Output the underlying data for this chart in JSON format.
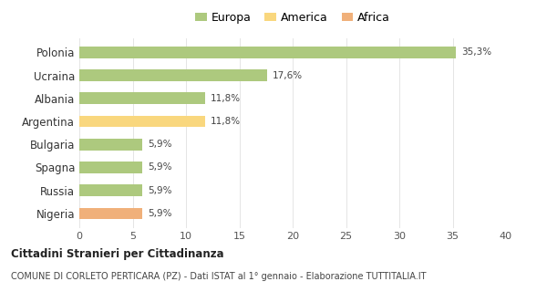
{
  "categories": [
    "Polonia",
    "Ucraina",
    "Albania",
    "Argentina",
    "Bulgaria",
    "Spagna",
    "Russia",
    "Nigeria"
  ],
  "values": [
    35.3,
    17.6,
    11.8,
    11.8,
    5.9,
    5.9,
    5.9,
    5.9
  ],
  "labels": [
    "35,3%",
    "17,6%",
    "11,8%",
    "11,8%",
    "5,9%",
    "5,9%",
    "5,9%",
    "5,9%"
  ],
  "colors": [
    "#adc97e",
    "#adc97e",
    "#adc97e",
    "#f9d77e",
    "#adc97e",
    "#adc97e",
    "#adc97e",
    "#f0b07a"
  ],
  "continent": [
    "Europa",
    "Europa",
    "Europa",
    "America",
    "Europa",
    "Europa",
    "Europa",
    "Africa"
  ],
  "legend_labels": [
    "Europa",
    "America",
    "Africa"
  ],
  "legend_colors": [
    "#adc97e",
    "#f9d77e",
    "#f0b07a"
  ],
  "title": "Cittadini Stranieri per Cittadinanza",
  "subtitle": "COMUNE DI CORLETO PERTICARA (PZ) - Dati ISTAT al 1° gennaio - Elaborazione TUTTITALIA.IT",
  "xlim": [
    0,
    40
  ],
  "xticks": [
    0,
    5,
    10,
    15,
    20,
    25,
    30,
    35,
    40
  ],
  "background_color": "#ffffff",
  "grid_color": "#e5e5e5"
}
